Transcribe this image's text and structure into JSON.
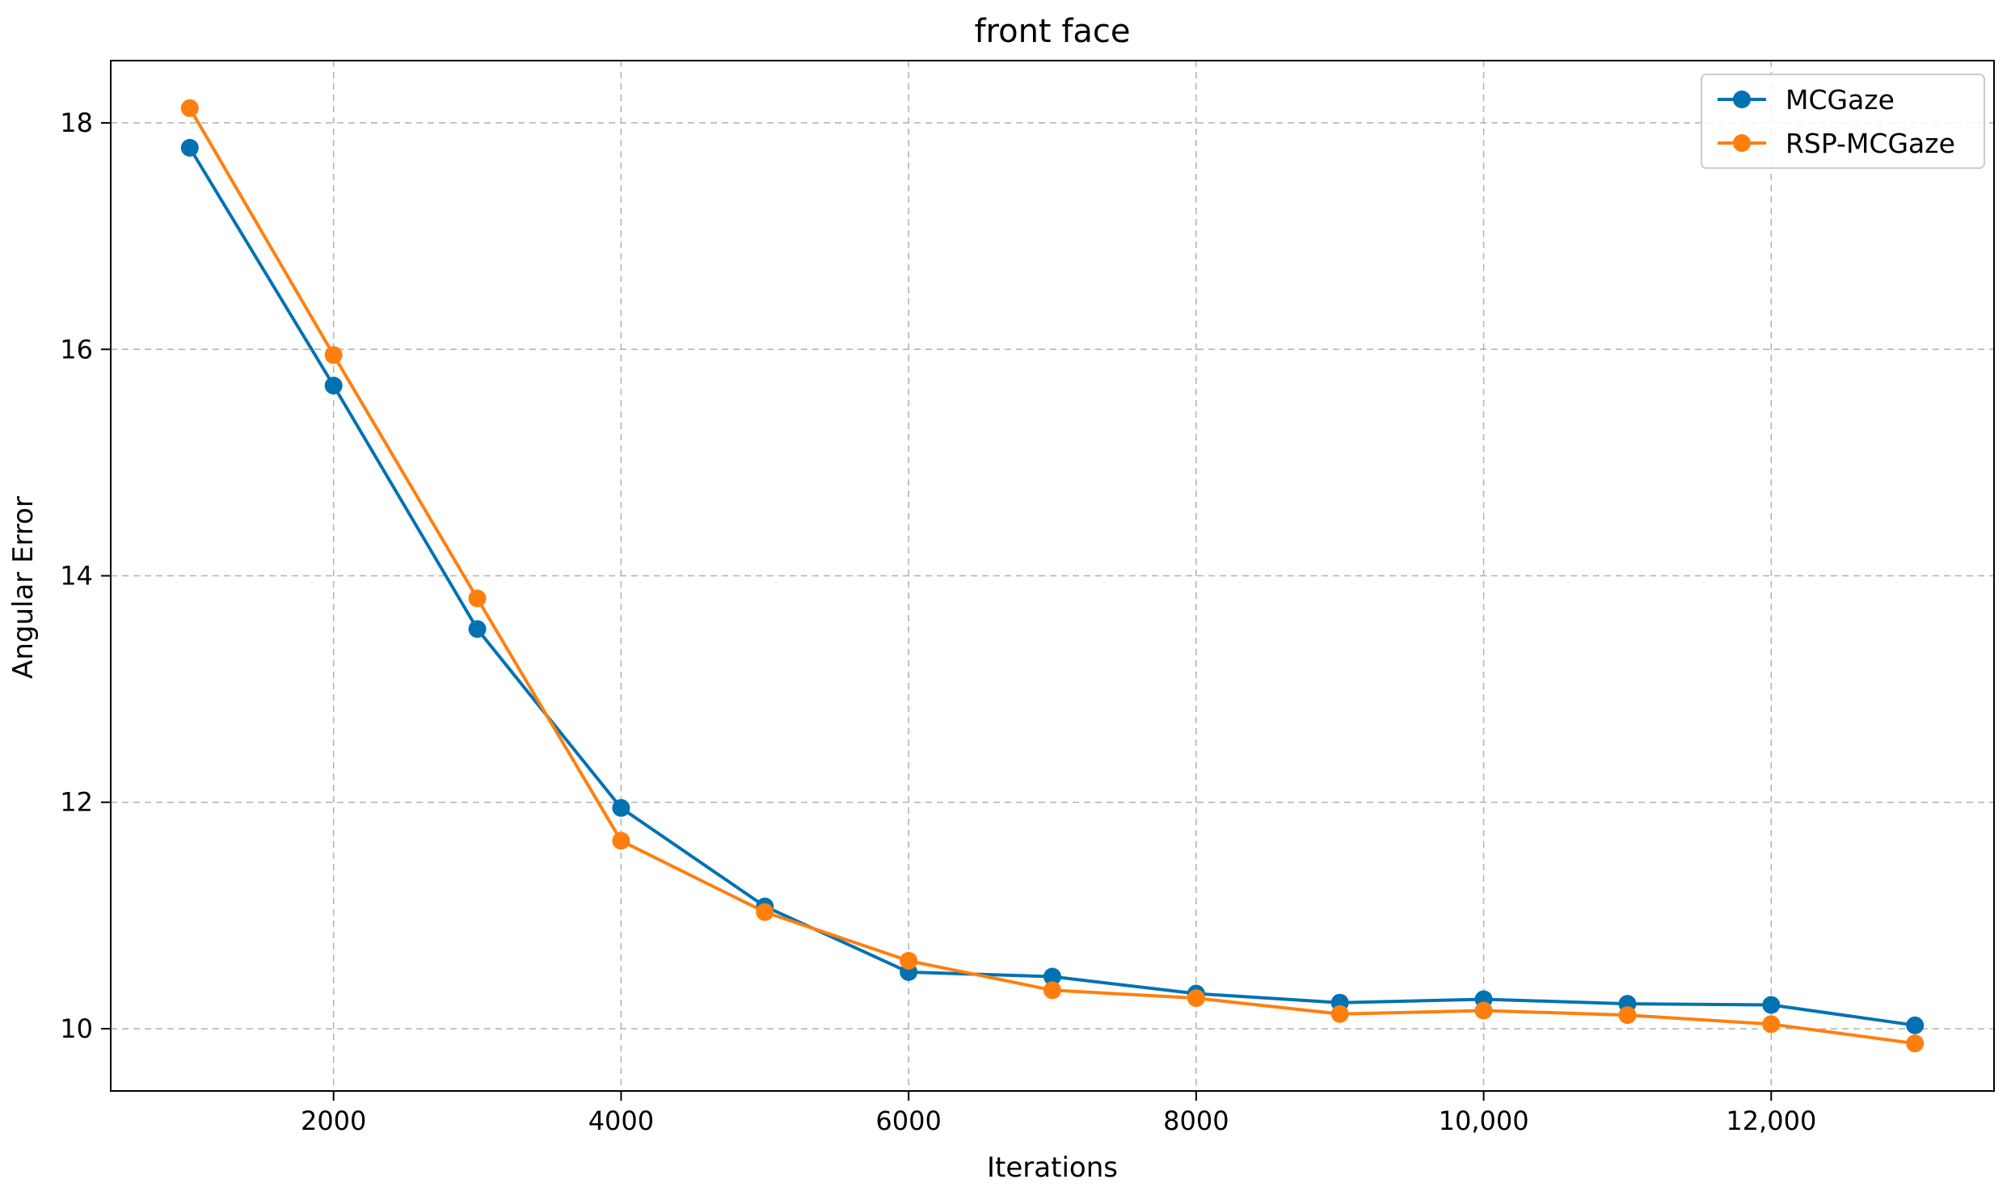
{
  "chart_data": {
    "type": "line",
    "title": "front face",
    "xlabel": "Iterations",
    "ylabel": "Angular Error",
    "xlim": [
      450,
      13550
    ],
    "ylim": [
      9.45,
      18.55
    ],
    "x_ticks": [
      2000,
      4000,
      6000,
      8000,
      10000,
      12000
    ],
    "x_tick_labels": [
      "2000",
      "4000",
      "6000",
      "8000",
      "10,000",
      "12,000"
    ],
    "y_ticks": [
      10,
      12,
      14,
      16,
      18
    ],
    "y_tick_labels": [
      "10",
      "12",
      "14",
      "16",
      "18"
    ],
    "grid": true,
    "legend_position": "top-right",
    "x": [
      1000,
      2000,
      3000,
      4000,
      5000,
      6000,
      7000,
      8000,
      9000,
      10000,
      11000,
      12000,
      13000
    ],
    "series": [
      {
        "name": "MCGaze",
        "color": "#0072b2",
        "values": [
          17.78,
          15.68,
          13.53,
          11.95,
          11.08,
          10.5,
          10.46,
          10.31,
          10.23,
          10.26,
          10.22,
          10.21,
          10.03
        ]
      },
      {
        "name": "RSP-MCGaze",
        "color": "#ff7f0e",
        "values": [
          18.13,
          15.95,
          13.8,
          11.66,
          11.03,
          10.6,
          10.34,
          10.27,
          10.13,
          10.16,
          10.12,
          10.04,
          9.87
        ]
      }
    ]
  }
}
